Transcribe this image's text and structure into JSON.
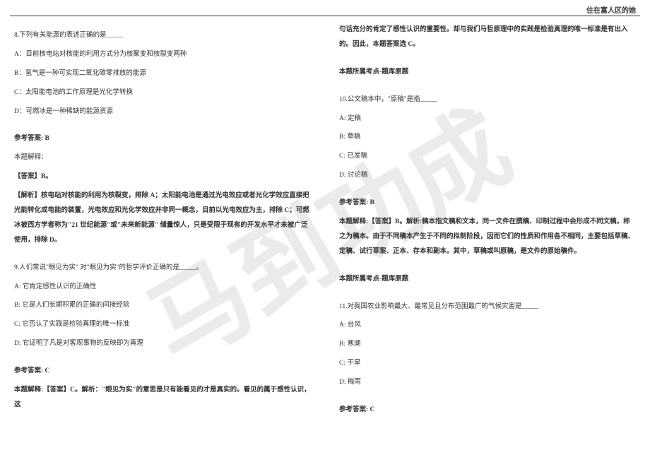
{
  "header": {
    "right_text": "住在富人区的她"
  },
  "watermark": "马到功成",
  "left_col": {
    "q8": {
      "stem": "8.下列有关能源的表述正确的是_____",
      "opts": {
        "a": "A：目前核电站对核能的利用方式分为核聚变和核裂变两种",
        "b": "B：氢气是一种可实现二氧化碳零排放的能源",
        "c": "C：太阳能电池的工作原理是光化学转换",
        "d": "D：可燃冰是一种稀缺的能源资源"
      },
      "ref": "参考答案: B",
      "expl_label": "本题解释：",
      "ans": "【答案】B。",
      "analysis": "【解析】核电站对核能的利用为核裂变，排除 A；太阳能电池是通过光电效应或者光化学效应直接把光能转化成电能的装置，光电效应和光化学效应并非同一概念，目前以光电效应为主，排除 C；可燃冰被西方学者称为\"21 世纪能源\"或\"未来新能源\" 储量惊人，只是受限于现有的开发水平才未被广泛使用，排除 D。"
    },
    "q9": {
      "stem": "9.人们常说\"眼见为实\" 对\"眼见为实\"的哲学评价正确的是_____。",
      "opts": {
        "a": "A: 它肯定感性认识的正确性",
        "b": "B: 它是人们长期积累的正确的间接经验",
        "c": "C: 它否认了实践是检验真理的唯一标准",
        "d": "D: 它证明了凡是对客观事物的反映即为真理"
      },
      "ref": "参考答案: C",
      "expl": "本题解释:【答案】C。解析：\"眼见为实\"的意思是只有能看见的才是真实的。看见的属于感性认识，这"
    }
  },
  "right_col": {
    "q9_cont": {
      "cont": "句话充分的肯定了感性认识的重要性。却与我们马哲原理中的实践是检验真理的唯一标准是有出入的。因此，本题答案选 C。",
      "topic": "本题所属考点-题库原题"
    },
    "q10": {
      "stem": "10.公文稿本中，\"原稿\"是指_____",
      "opts": {
        "a": "A: 定稿",
        "b": "B: 草稿",
        "c": "C: 已发稿",
        "d": "D: 讨论稿"
      },
      "ref": "参考答案: B",
      "expl": "本题解释:【答案】B。解析:稿本指文稿和文本，同一文件在撰稿、印制过程中会形成不同文稿，称之为稿本。由于不同稿本产生于不同的拟制阶段，因而它们的性质和作用各不相同，主要包括草稿、定稿、试行草案、正本、存本和副本。其中，草稿或叫原稿，是文件的原始稿件。",
      "topic": "本题所属考点-题库原题"
    },
    "q11": {
      "stem": "11.对我国农业影响最大、最常见且分布范围最广的气候灾害是_____",
      "opts": {
        "a": "A: 台风",
        "b": "B: 寒潮",
        "c": "C: 干旱",
        "d": "D: 梅雨"
      },
      "ref": "参考答案: C"
    }
  }
}
